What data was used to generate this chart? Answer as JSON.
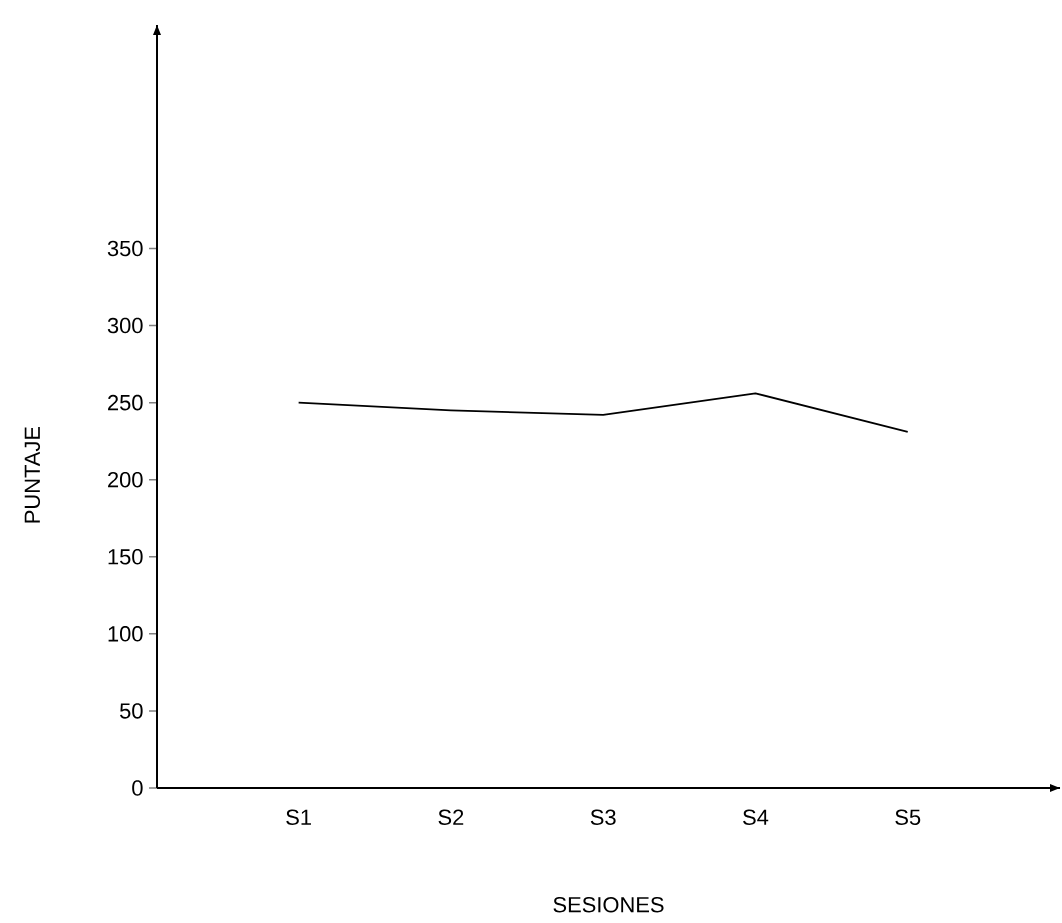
{
  "chart_data": {
    "type": "line",
    "xlabel": "SESIONES",
    "ylabel": "PUNTAJE",
    "categories": [
      "S1",
      "S2",
      "S3",
      "S4",
      "S5"
    ],
    "values": [
      250,
      245,
      242,
      256,
      231
    ],
    "color": "#000000",
    "ylim": [
      0,
      495
    ],
    "yticks": [
      0,
      50,
      100,
      150,
      200,
      250,
      300,
      350
    ]
  }
}
